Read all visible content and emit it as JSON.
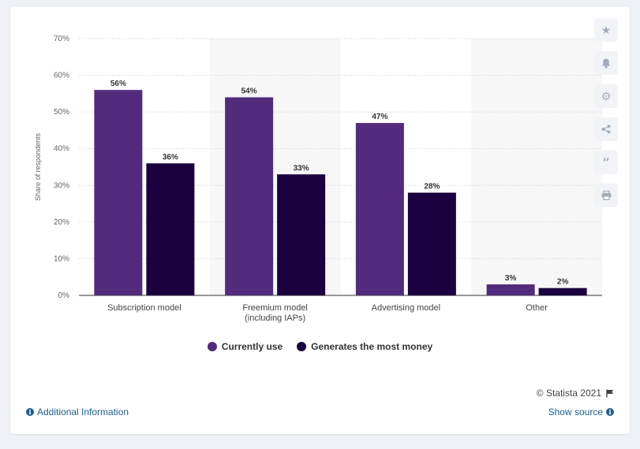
{
  "chart_data": {
    "type": "bar",
    "categories": [
      "Subscription model",
      "Freemium model (including IAPs)",
      "Advertising model",
      "Other"
    ],
    "series": [
      {
        "name": "Currently use",
        "values": [
          56,
          54,
          47,
          3
        ],
        "color": "#532b7d"
      },
      {
        "name": "Generates the most money",
        "values": [
          36,
          33,
          28,
          2
        ],
        "color": "#1b003f"
      }
    ],
    "ylabel": "Share of respondents",
    "xlabel": "",
    "ylim": [
      0,
      70
    ],
    "yticks": [
      "0%",
      "10%",
      "20%",
      "30%",
      "40%",
      "50%",
      "60%",
      "70%"
    ],
    "value_suffix": "%",
    "grid": true,
    "legend": "bottom-center"
  },
  "footer": {
    "copyright": "© Statista 2021",
    "additional_info": "Additional Information",
    "show_source": "Show source"
  },
  "toolbar": {
    "icons": [
      "star-icon",
      "bell-icon",
      "gear-icon",
      "share-icon",
      "quote-icon",
      "print-icon"
    ]
  }
}
